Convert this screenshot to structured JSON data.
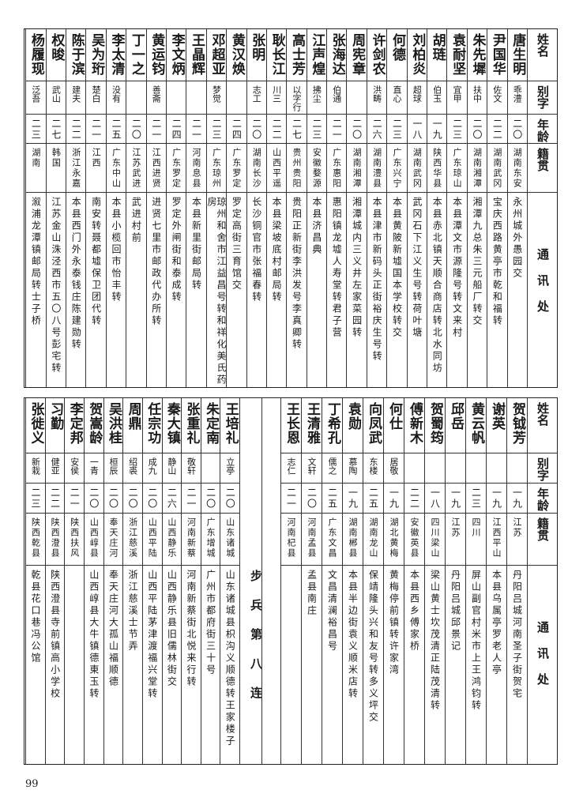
{
  "headers": {
    "name": "姓名",
    "alias": "别字",
    "age": "年龄",
    "origin": "籍贯",
    "address": "通讯处"
  },
  "top_rows": [
    {
      "name": "唐生明",
      "alias": "乖澧",
      "age": "二〇",
      "origin": "湖南东安",
      "address": "永州城外愚园交"
    },
    {
      "name": "尹国华",
      "alias": "佐文",
      "age": "二二",
      "origin": "湖南武冈",
      "address": "宝庆西路黄亭市乾和福转"
    },
    {
      "name": "朱先墀",
      "alias": "扶中",
      "age": "二〇",
      "origin": "湖南湘潭",
      "address": "湘潭九总朱三元船厂转交"
    },
    {
      "name": "袁耐坚",
      "alias": "宜甲",
      "age": "二三",
      "origin": "广东琼山",
      "address": "本县潭文市源隆号转文来村"
    },
    {
      "name": "胡琏",
      "alias": "伯玉",
      "age": "一九",
      "origin": "陕西华县",
      "address": "本县赤北镇天顺合商店转北水同坊"
    },
    {
      "name": "刘柏炎",
      "alias": "超球",
      "age": "一八",
      "origin": "湖南武冈",
      "address": "武冈石下江义生号转荷叶塘"
    },
    {
      "name": "何德",
      "alias": "直心",
      "age": "二三",
      "origin": "广东兴宁",
      "address": "本县黄陂新墟国本学校转交"
    },
    {
      "name": "许剑农",
      "alias": "洪畴",
      "age": "二六",
      "origin": "湖南澧县",
      "address": "本县津市新码头正街裕庆生号转"
    },
    {
      "name": "周宪章",
      "alias": "",
      "age": "二〇",
      "origin": "湖南湘潭",
      "address": "湘潭城内三义井左家菜园转"
    },
    {
      "name": "张海达",
      "alias": "伯通",
      "age": "二一",
      "origin": "广东惠阳",
      "address": "惠阳镇龙墟人寿堂转君子营"
    },
    {
      "name": "江声煌",
      "alias": "拂尘",
      "age": "二三",
      "origin": "安徽婺源",
      "address": "本县济昌典"
    },
    {
      "name": "高士芳",
      "alias": "以字行",
      "age": "二七",
      "origin": "贵州贵阳",
      "address": "贵阳正新街李洪发号李真卿转"
    },
    {
      "name": "耿长江",
      "alias": "川三",
      "age": "二二",
      "origin": "山西平遥",
      "address": "本县梁坡底村邮局转"
    },
    {
      "name": "张明",
      "alias": "志工",
      "age": "二〇",
      "origin": "湖南长沙",
      "address": "长沙铜官市张福春转"
    },
    {
      "name": "黄汉焕",
      "alias": "",
      "age": "二四",
      "origin": "广东罗定",
      "address": "罗定高街三育馆交"
    },
    {
      "name": "邓超亚",
      "alias": "梦觉",
      "age": "二三",
      "origin": "广东琼州",
      "address": "琼州和舍市江益昌号转和祥化美氏药房"
    },
    {
      "name": "王晶辉",
      "alias": "",
      "age": "二一",
      "origin": "河南息县",
      "address": "本县新里街邮局转"
    },
    {
      "name": "李文炳",
      "alias": "",
      "age": "二四",
      "origin": "广东罗定",
      "address": "罗定外闸街和泰成转"
    },
    {
      "name": "黄运钧",
      "alias": "善斋",
      "age": "二一",
      "origin": "江西进贤",
      "address": "进贤七里市邮政代办所转"
    },
    {
      "name": "丁一之",
      "alias": "",
      "age": "二〇",
      "origin": "江苏武进",
      "address": "武进村前"
    },
    {
      "name": "李太清",
      "alias": "没有",
      "age": "二五",
      "origin": "广东中山",
      "address": "本县小榄回市怡丰转"
    },
    {
      "name": "吴为珩",
      "alias": "楚白",
      "age": "二一",
      "origin": "江西",
      "address": "南安转聂都墟保卫团代转"
    },
    {
      "name": "陈于滨",
      "alias": "建夫",
      "age": "二二",
      "origin": "浙江永嘉",
      "address": "本县西门外永泰钱庄陈建勋转"
    },
    {
      "name": "权晙",
      "alias": "武山",
      "age": "二七",
      "origin": "韩国",
      "address": "江苏金山洙泾西市五〇八号彭宅转"
    },
    {
      "name": "杨履现",
      "alias": "泛吾",
      "age": "二三",
      "origin": "湖南",
      "address": "溆浦龙潭镇邮局转士子桥"
    }
  ],
  "bottom_right_rows": [
    {
      "name": "贺钺芳",
      "alias": "",
      "age": "一九",
      "origin": "江苏",
      "address": "丹阳吕城河南圣子街贺宅"
    },
    {
      "name": "谢英",
      "alias": "",
      "age": "一九",
      "origin": "江西平山",
      "address": "本县乌属亭罗老人亭"
    },
    {
      "name": "黄云帆",
      "alias": "",
      "age": "二三",
      "origin": "四川",
      "address": "屏山副官村米市上王鸿钧转"
    },
    {
      "name": "邱岳",
      "alias": "",
      "age": "一九",
      "origin": "江苏",
      "address": "丹阳吕城邱景记"
    },
    {
      "name": "贺蜀筠",
      "alias": "",
      "age": "一八",
      "origin": "四川梁山",
      "address": "梁山黄士坎茂清正陆茂清转"
    },
    {
      "name": "傅新木",
      "alias": "",
      "age": "二二",
      "origin": "安徽英县",
      "address": "本县西乡傅家桥"
    },
    {
      "name": "何仕",
      "alias": "居敬",
      "age": "一九",
      "origin": "湖北黄梅",
      "address": "黄梅停前镇转许家湾"
    },
    {
      "name": "向凤武",
      "alias": "东楼",
      "age": "二五",
      "origin": "湖南龙山",
      "address": "保靖隆头兴和友号转多义坪交"
    },
    {
      "name": "袁勋",
      "alias": "慕陶",
      "age": "一九",
      "origin": "湖南郴县",
      "address": "本县半边街袁义顺米店转"
    },
    {
      "name": "丁希孔",
      "alias": "儒之",
      "age": "二五",
      "origin": "广东文昌",
      "address": "文昌清澜裕昌号"
    },
    {
      "name": "王清雅",
      "alias": "文轩",
      "age": "二〇",
      "origin": "河南孟县",
      "address": "孟县南庄"
    },
    {
      "name": "王长恩",
      "alias": "志仁",
      "age": "二一",
      "origin": "河南杞县",
      "address": ""
    }
  ],
  "unit_label": "步兵第八连",
  "bottom_left_rows": [
    {
      "name": "王培礼",
      "alias": "立亭",
      "age": "二〇",
      "origin": "山东诸城",
      "address": "山东诸城县枳沟义顺德转王家楼子"
    },
    {
      "name": "朱定南",
      "alias": "",
      "age": "二〇",
      "origin": "广东增城",
      "address": "广州市都府街三十号"
    },
    {
      "name": "张重礼",
      "alias": "敬轩",
      "age": "二一",
      "origin": "河南新蔡",
      "address": "河南新蔡街北悦来行转"
    },
    {
      "name": "秦大镇",
      "alias": "静山",
      "age": "二六",
      "origin": "山西静乐",
      "address": "山西静乐县旧儒林街交"
    },
    {
      "name": "任宗功",
      "alias": "成九",
      "age": "二〇",
      "origin": "山西平陆",
      "address": "山西平陆茅津渡福兴堂转"
    },
    {
      "name": "周鼎",
      "alias": "绍裘",
      "age": "二〇",
      "origin": "浙江慈溪",
      "address": "浙江慈溪士节弄"
    },
    {
      "name": "吴洪桂",
      "alias": "桓辰",
      "age": "二〇",
      "origin": "奉天庄河",
      "address": "奉天庄河大孤山福顺德"
    },
    {
      "name": "贺嵩龄",
      "alias": "一青",
      "age": "二〇",
      "origin": "山西崞县",
      "address": "山西崞县大牛镇德東玉转"
    },
    {
      "name": "李定邦",
      "alias": "安侯",
      "age": "二一",
      "origin": "陕西扶风",
      "address": ""
    },
    {
      "name": "习勤",
      "alias": "健亚",
      "age": "二二",
      "origin": "陕西澄县",
      "address": "陕西澄县寺前镇高小学校"
    },
    {
      "name": "张徙义",
      "alias": "新栽",
      "age": "二三",
      "origin": "陕西乾县",
      "address": "乾县花口巷冯公馆"
    }
  ],
  "page_number": "99"
}
